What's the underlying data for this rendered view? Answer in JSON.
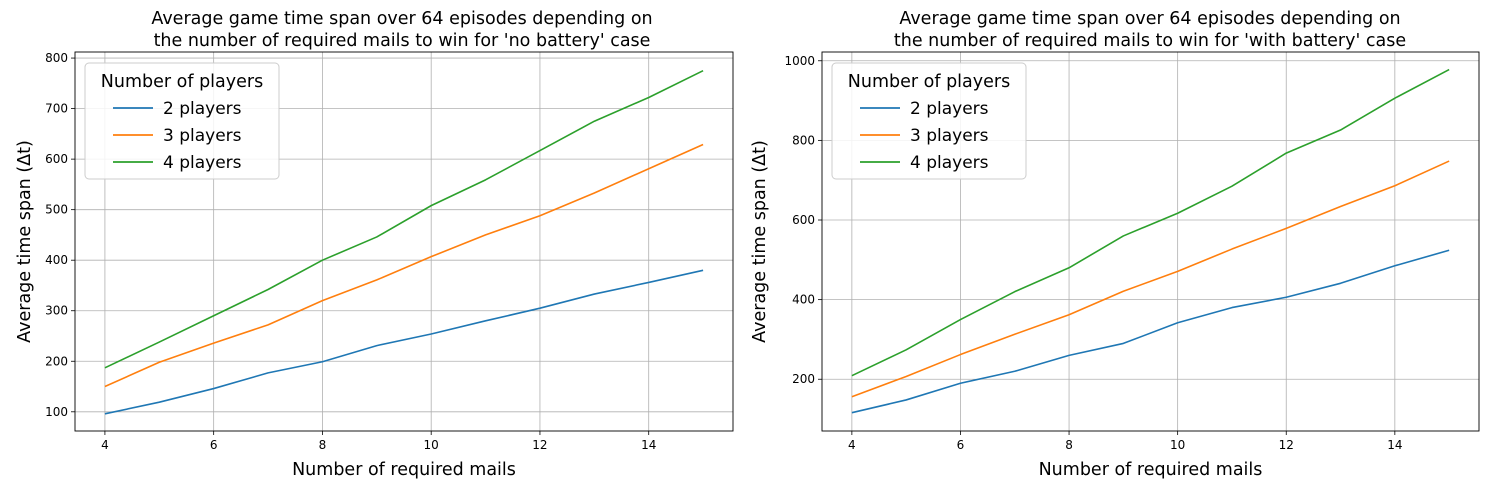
{
  "chart_data": [
    {
      "type": "line",
      "title_line1": "Average game time span over 64 episodes depending on",
      "title_line2": "the number of required mails to win for 'no battery' case",
      "xlabel": "Number of required mails",
      "ylabel": "Average time span (Δt)",
      "xlim": [
        3.45,
        15.55
      ],
      "ylim": [
        62,
        812
      ],
      "xticks": [
        4,
        6,
        8,
        10,
        12,
        14
      ],
      "yticks": [
        100,
        200,
        300,
        400,
        500,
        600,
        700,
        800
      ],
      "grid": true,
      "legend_title": "Number of players",
      "legend_position": "upper-left",
      "x": [
        4,
        5,
        6,
        7,
        8,
        9,
        10,
        11,
        12,
        13,
        14,
        15
      ],
      "series": [
        {
          "name": "2 players",
          "color": "#1f77b4",
          "values": [
            96,
            119,
            146,
            177,
            199,
            231,
            254,
            280,
            305,
            333,
            356,
            380
          ]
        },
        {
          "name": "3 players",
          "color": "#ff7f0e",
          "values": [
            150,
            198,
            236,
            272,
            320,
            361,
            407,
            450,
            488,
            533,
            581,
            629
          ]
        },
        {
          "name": "4 players",
          "color": "#2ca02c",
          "values": [
            187,
            238,
            290,
            342,
            400,
            446,
            508,
            559,
            617,
            675,
            722,
            775
          ]
        }
      ]
    },
    {
      "type": "line",
      "title_line1": "Average game time span over 64 episodes depending on",
      "title_line2": "the number of required mails to win for 'with battery' case",
      "xlabel": "Number of required mails",
      "ylabel": "Average time span (Δt)",
      "xlim": [
        3.45,
        15.55
      ],
      "ylim": [
        70,
        1022
      ],
      "xticks": [
        4,
        6,
        8,
        10,
        12,
        14
      ],
      "yticks": [
        200,
        400,
        600,
        800,
        1000
      ],
      "grid": true,
      "legend_title": "Number of players",
      "legend_position": "upper-left",
      "x": [
        4,
        5,
        6,
        7,
        8,
        9,
        10,
        11,
        12,
        13,
        14,
        15
      ],
      "series": [
        {
          "name": "2 players",
          "color": "#1f77b4",
          "values": [
            116,
            148,
            190,
            220,
            260,
            290,
            342,
            380,
            406,
            441,
            485,
            524
          ]
        },
        {
          "name": "3 players",
          "color": "#ff7f0e",
          "values": [
            156,
            207,
            262,
            313,
            362,
            421,
            471,
            527,
            579,
            634,
            686,
            748
          ]
        },
        {
          "name": "4 players",
          "color": "#2ca02c",
          "values": [
            209,
            274,
            350,
            420,
            480,
            560,
            617,
            685,
            768,
            826,
            906,
            978
          ]
        }
      ]
    }
  ]
}
